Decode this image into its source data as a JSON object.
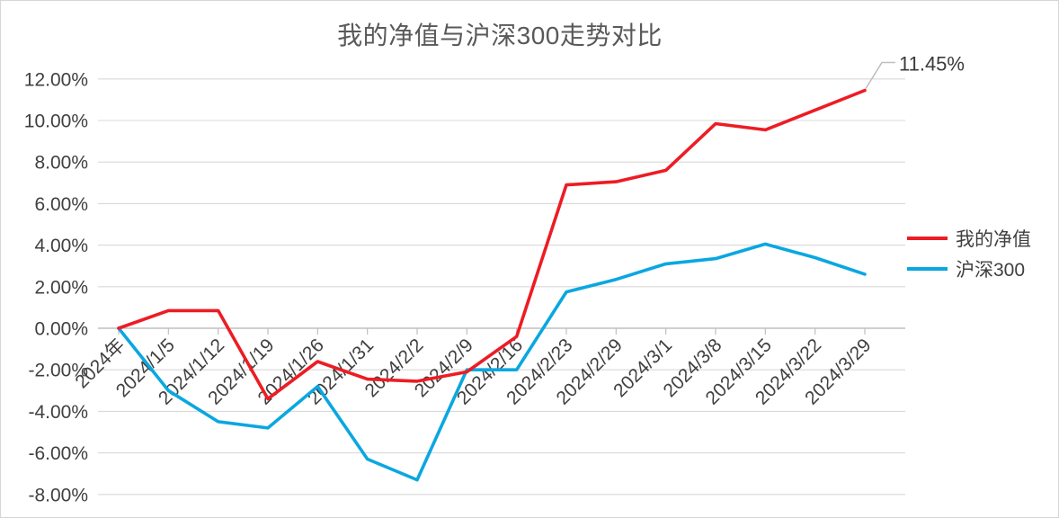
{
  "chart": {
    "title_color": "#595959",
    "axis_text_color": "#404040",
    "gridline_color": "#d9d9d9",
    "axis_line_color": "#bfbfbf",
    "background": "#ffffff",
    "annotation": {
      "text": "11.45%",
      "color": "#3b3b3b",
      "leader_color": "#bfbfbf"
    },
    "chart_data": {
      "type": "line",
      "title": "我的净值与沪深300走势对比",
      "categories": [
        "2024年",
        "2024/1/5",
        "2024/1/12",
        "2024/1/19",
        "2024/1/26",
        "2024/1/31",
        "2024/2/2",
        "2024/2/9",
        "2024/2/16",
        "2024/2/23",
        "2024/2/29",
        "2024/3/1",
        "2024/3/8",
        "2024/3/15",
        "2024/3/22",
        "2024/3/29"
      ],
      "series": [
        {
          "name": "我的净值",
          "color": "#ed1c24",
          "values": [
            0.0,
            0.85,
            0.85,
            -3.4,
            -1.6,
            -2.45,
            -2.55,
            -2.1,
            -0.4,
            6.9,
            7.05,
            7.6,
            9.85,
            9.55,
            10.5,
            11.45
          ]
        },
        {
          "name": "沪深300",
          "color": "#0aa7e0",
          "values": [
            0.0,
            -3.0,
            -4.5,
            -4.8,
            -2.8,
            -6.3,
            -7.3,
            -2.0,
            -2.0,
            1.75,
            2.35,
            3.1,
            3.35,
            4.05,
            3.4,
            2.6
          ]
        }
      ],
      "y_ticks": [
        12,
        10,
        8,
        6,
        4,
        2,
        0,
        -2,
        -4,
        -6,
        -8
      ],
      "y_tick_labels": [
        "12.00%",
        "10.00%",
        "8.00%",
        "6.00%",
        "4.00%",
        "2.00%",
        "0.00%",
        "-2.00%",
        "-4.00%",
        "-6.00%",
        "-8.00%"
      ],
      "ylim": [
        -8,
        12
      ],
      "xlabel": "",
      "ylabel": "",
      "grid": true,
      "legend_position": "right",
      "end_label": "11.45%"
    }
  }
}
